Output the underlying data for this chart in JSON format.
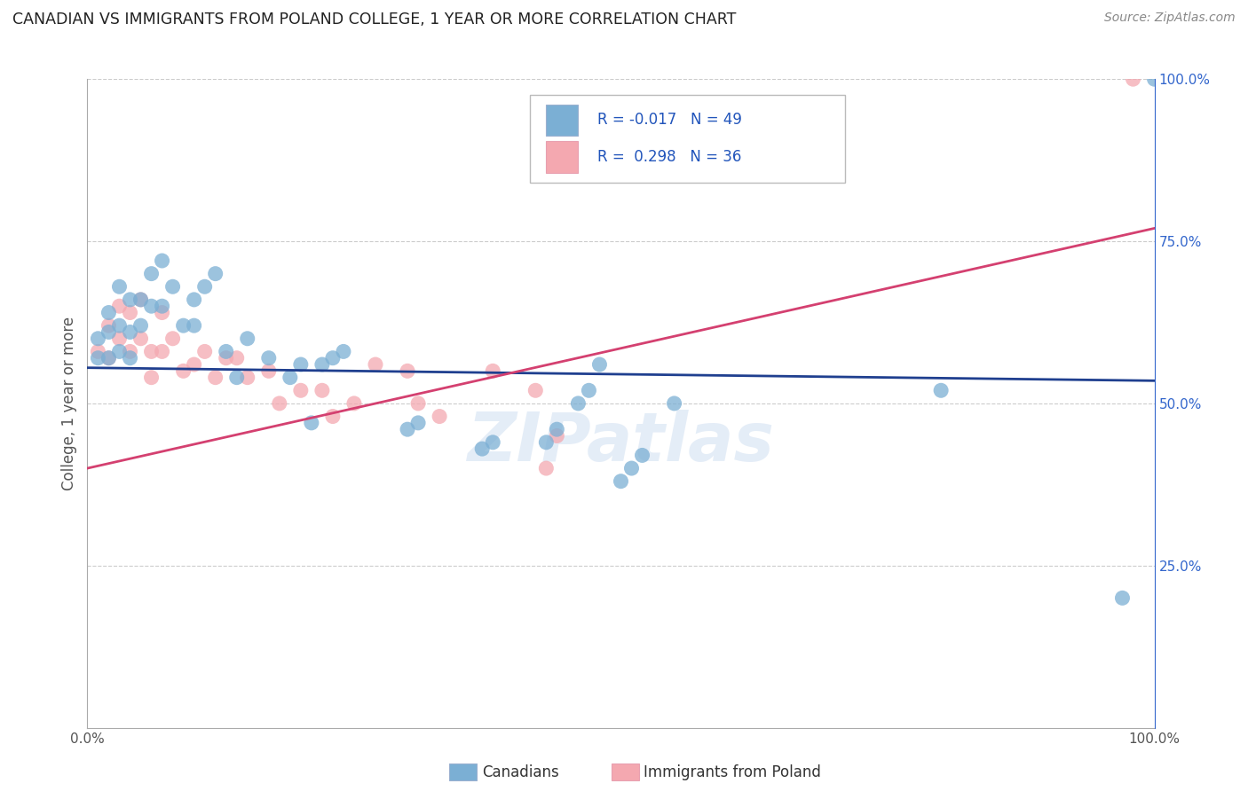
{
  "title": "CANADIAN VS IMMIGRANTS FROM POLAND COLLEGE, 1 YEAR OR MORE CORRELATION CHART",
  "source": "Source: ZipAtlas.com",
  "ylabel": "College, 1 year or more",
  "xlim": [
    0.0,
    1.0
  ],
  "ylim": [
    0.0,
    1.0
  ],
  "grid_color": "#cccccc",
  "watermark": "ZIPatlas",
  "legend_R_blue": "-0.017",
  "legend_N_blue": "49",
  "legend_R_pink": "0.298",
  "legend_N_pink": "36",
  "blue_color": "#7bafd4",
  "pink_color": "#f4a8b0",
  "blue_line_color": "#1f3f8f",
  "pink_line_color": "#d44070",
  "canadians_x": [
    0.01,
    0.01,
    0.02,
    0.02,
    0.02,
    0.03,
    0.03,
    0.03,
    0.04,
    0.04,
    0.04,
    0.05,
    0.05,
    0.06,
    0.06,
    0.07,
    0.07,
    0.08,
    0.09,
    0.1,
    0.1,
    0.11,
    0.12,
    0.13,
    0.14,
    0.15,
    0.17,
    0.19,
    0.2,
    0.21,
    0.22,
    0.23,
    0.24,
    0.3,
    0.31,
    0.37,
    0.38,
    0.43,
    0.44,
    0.46,
    0.47,
    0.48,
    0.5,
    0.51,
    0.52,
    0.55,
    0.8,
    0.97,
    1.0
  ],
  "canadians_y": [
    0.6,
    0.57,
    0.64,
    0.61,
    0.57,
    0.68,
    0.62,
    0.58,
    0.66,
    0.61,
    0.57,
    0.66,
    0.62,
    0.7,
    0.65,
    0.72,
    0.65,
    0.68,
    0.62,
    0.66,
    0.62,
    0.68,
    0.7,
    0.58,
    0.54,
    0.6,
    0.57,
    0.54,
    0.56,
    0.47,
    0.56,
    0.57,
    0.58,
    0.46,
    0.47,
    0.43,
    0.44,
    0.44,
    0.46,
    0.5,
    0.52,
    0.56,
    0.38,
    0.4,
    0.42,
    0.5,
    0.52,
    0.2,
    1.0
  ],
  "poland_x": [
    0.01,
    0.02,
    0.02,
    0.03,
    0.03,
    0.04,
    0.04,
    0.05,
    0.05,
    0.06,
    0.06,
    0.07,
    0.07,
    0.08,
    0.09,
    0.1,
    0.11,
    0.12,
    0.13,
    0.14,
    0.15,
    0.17,
    0.18,
    0.2,
    0.22,
    0.23,
    0.25,
    0.27,
    0.3,
    0.31,
    0.33,
    0.38,
    0.42,
    0.43,
    0.44,
    0.98
  ],
  "poland_y": [
    0.58,
    0.62,
    0.57,
    0.65,
    0.6,
    0.64,
    0.58,
    0.66,
    0.6,
    0.58,
    0.54,
    0.64,
    0.58,
    0.6,
    0.55,
    0.56,
    0.58,
    0.54,
    0.57,
    0.57,
    0.54,
    0.55,
    0.5,
    0.52,
    0.52,
    0.48,
    0.5,
    0.56,
    0.55,
    0.5,
    0.48,
    0.55,
    0.52,
    0.4,
    0.45,
    1.0
  ],
  "blue_line_x": [
    0.0,
    1.0
  ],
  "blue_line_y": [
    0.555,
    0.535
  ],
  "pink_line_x": [
    0.0,
    1.0
  ],
  "pink_line_y": [
    0.4,
    0.77
  ]
}
